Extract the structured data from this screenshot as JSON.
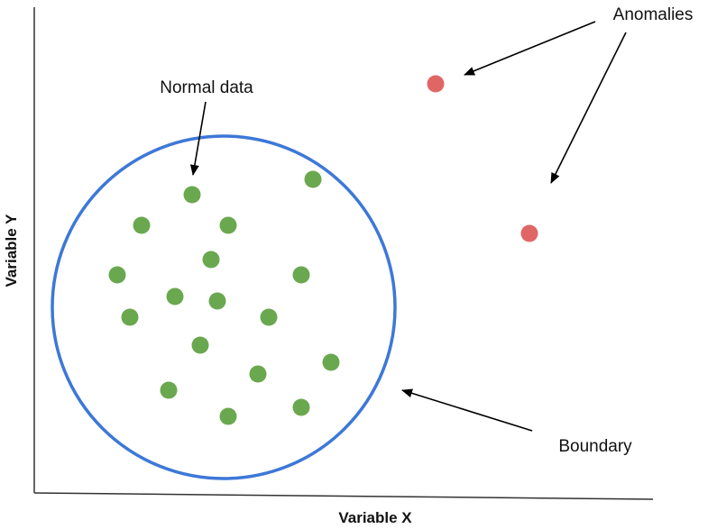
{
  "axes": {
    "x_label": "Variable X",
    "y_label": "Variable Y"
  },
  "annotations": {
    "normal": "Normal data",
    "anomalies": "Anomalies",
    "boundary": "Boundary"
  },
  "colors": {
    "normal_point": "#6aa84f",
    "anomaly_point": "#e06666",
    "boundary": "#3c78d8",
    "axis": "#333333",
    "arrow": "#000000"
  }
}
